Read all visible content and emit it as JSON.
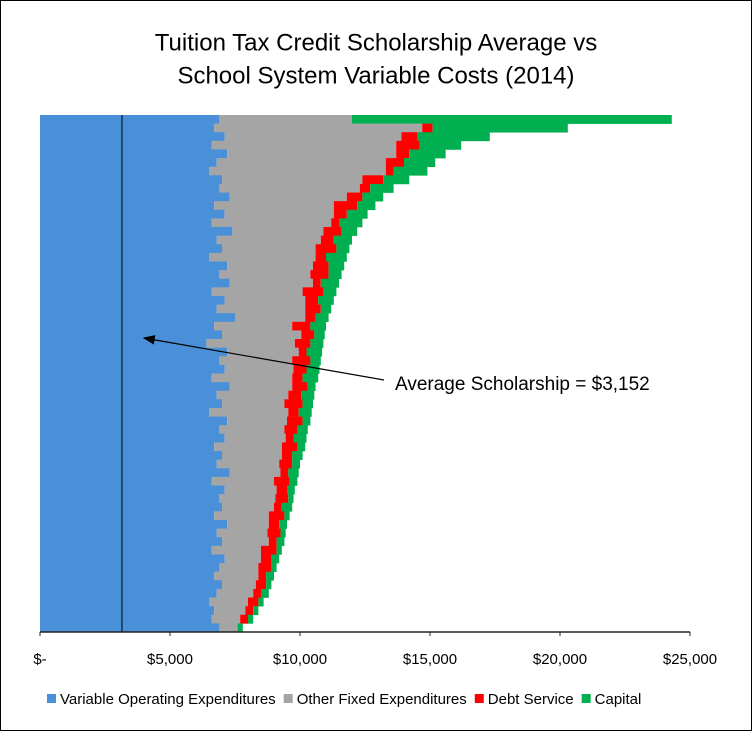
{
  "chart_data": {
    "type": "stacked-barh",
    "title": [
      "Tuition Tax Credit Scholarship Average vs",
      "School System Variable Costs (2014)"
    ],
    "categories": [
      null,
      null,
      null,
      null,
      null,
      null,
      null,
      null,
      null,
      null,
      null,
      null,
      null,
      null,
      null,
      null,
      null,
      null,
      null,
      null,
      null,
      null,
      null,
      null,
      null,
      null,
      null,
      null,
      null,
      null,
      null,
      null,
      null,
      null,
      null,
      null,
      null,
      null,
      null,
      null,
      null,
      null,
      null,
      null,
      null,
      null,
      null,
      null,
      null,
      null,
      null,
      null,
      null,
      null,
      null,
      null,
      null,
      null,
      null,
      null
    ],
    "series": [
      {
        "name": "Variable Operating Expenditures",
        "color": "#4a90d9",
        "values": [
          6900,
          6700,
          7100,
          6600,
          7200,
          6800,
          6500,
          7000,
          6900,
          7300,
          6700,
          7100,
          6600,
          7400,
          6800,
          7000,
          6500,
          7200,
          6900,
          7300,
          6600,
          7100,
          6800,
          7500,
          6700,
          7000,
          6400,
          7200,
          6900,
          7100,
          6600,
          7300,
          6800,
          7000,
          6500,
          7200,
          6900,
          7100,
          6700,
          7000,
          6800,
          7300,
          6600,
          7100,
          6900,
          7000,
          6700,
          7200,
          6800,
          7000,
          6600,
          7100,
          6900,
          6700,
          7000,
          6800,
          6500,
          6700,
          6600,
          6900
        ]
      },
      {
        "name": "Other Fixed Expenditures",
        "color": "#a5a5a5",
        "values": [
          5100,
          8000,
          6800,
          7100,
          6500,
          6500,
          6800,
          5400,
          5400,
          4500,
          4600,
          4200,
          4600,
          3500,
          4000,
          3600,
          4100,
          3300,
          3500,
          3200,
          3500,
          3100,
          3400,
          2700,
          3000,
          3050,
          3400,
          2750,
          2800,
          2650,
          3100,
          2400,
          2750,
          2400,
          3050,
          2300,
          2500,
          2350,
          2600,
          2300,
          2400,
          1950,
          2400,
          2000,
          2150,
          2000,
          2100,
          1600,
          1950,
          1800,
          1900,
          1400,
          1500,
          1700,
          1300,
          1400,
          1500,
          1200,
          1100,
          700
        ]
      },
      {
        "name": "Debt Service",
        "color": "#ff0000",
        "values": [
          0,
          400,
          600,
          900,
          500,
          700,
          300,
          800,
          400,
          600,
          900,
          500,
          300,
          700,
          500,
          800,
          400,
          600,
          700,
          300,
          800,
          500,
          600,
          400,
          700,
          500,
          600,
          300,
          700,
          500,
          400,
          600,
          500,
          700,
          400,
          600,
          500,
          300,
          600,
          400,
          500,
          300,
          600,
          400,
          500,
          300,
          600,
          400,
          500,
          300,
          600,
          400,
          500,
          300,
          400,
          300,
          400,
          300,
          300,
          0
        ]
      },
      {
        "name": "Capital",
        "color": "#00b050",
        "values": [
          12300,
          5200,
          2800,
          1600,
          1400,
          1200,
          1300,
          1000,
          900,
          800,
          700,
          800,
          900,
          600,
          700,
          500,
          800,
          600,
          500,
          700,
          500,
          600,
          400,
          500,
          600,
          400,
          500,
          600,
          400,
          500,
          600,
          300,
          500,
          400,
          500,
          300,
          400,
          500,
          300,
          400,
          300,
          400,
          300,
          300,
          200,
          400,
          200,
          300,
          200,
          300,
          200,
          300,
          200,
          300,
          200,
          300,
          200,
          200,
          200,
          200
        ]
      }
    ],
    "xlim": [
      0,
      25000
    ],
    "xticks": [
      {
        "value": 0,
        "label": "$-"
      },
      {
        "value": 5000,
        "label": "$5,000"
      },
      {
        "value": 10000,
        "label": "$10,000"
      },
      {
        "value": 15000,
        "label": "$15,000"
      },
      {
        "value": 20000,
        "label": "$20,000"
      },
      {
        "value": 25000,
        "label": "$25,000"
      }
    ],
    "reference_line": {
      "value": 3152,
      "label": "Average Scholarship = $3,152",
      "color": "#000000",
      "fill": "#9dbbd9"
    },
    "legend": "bottom"
  }
}
